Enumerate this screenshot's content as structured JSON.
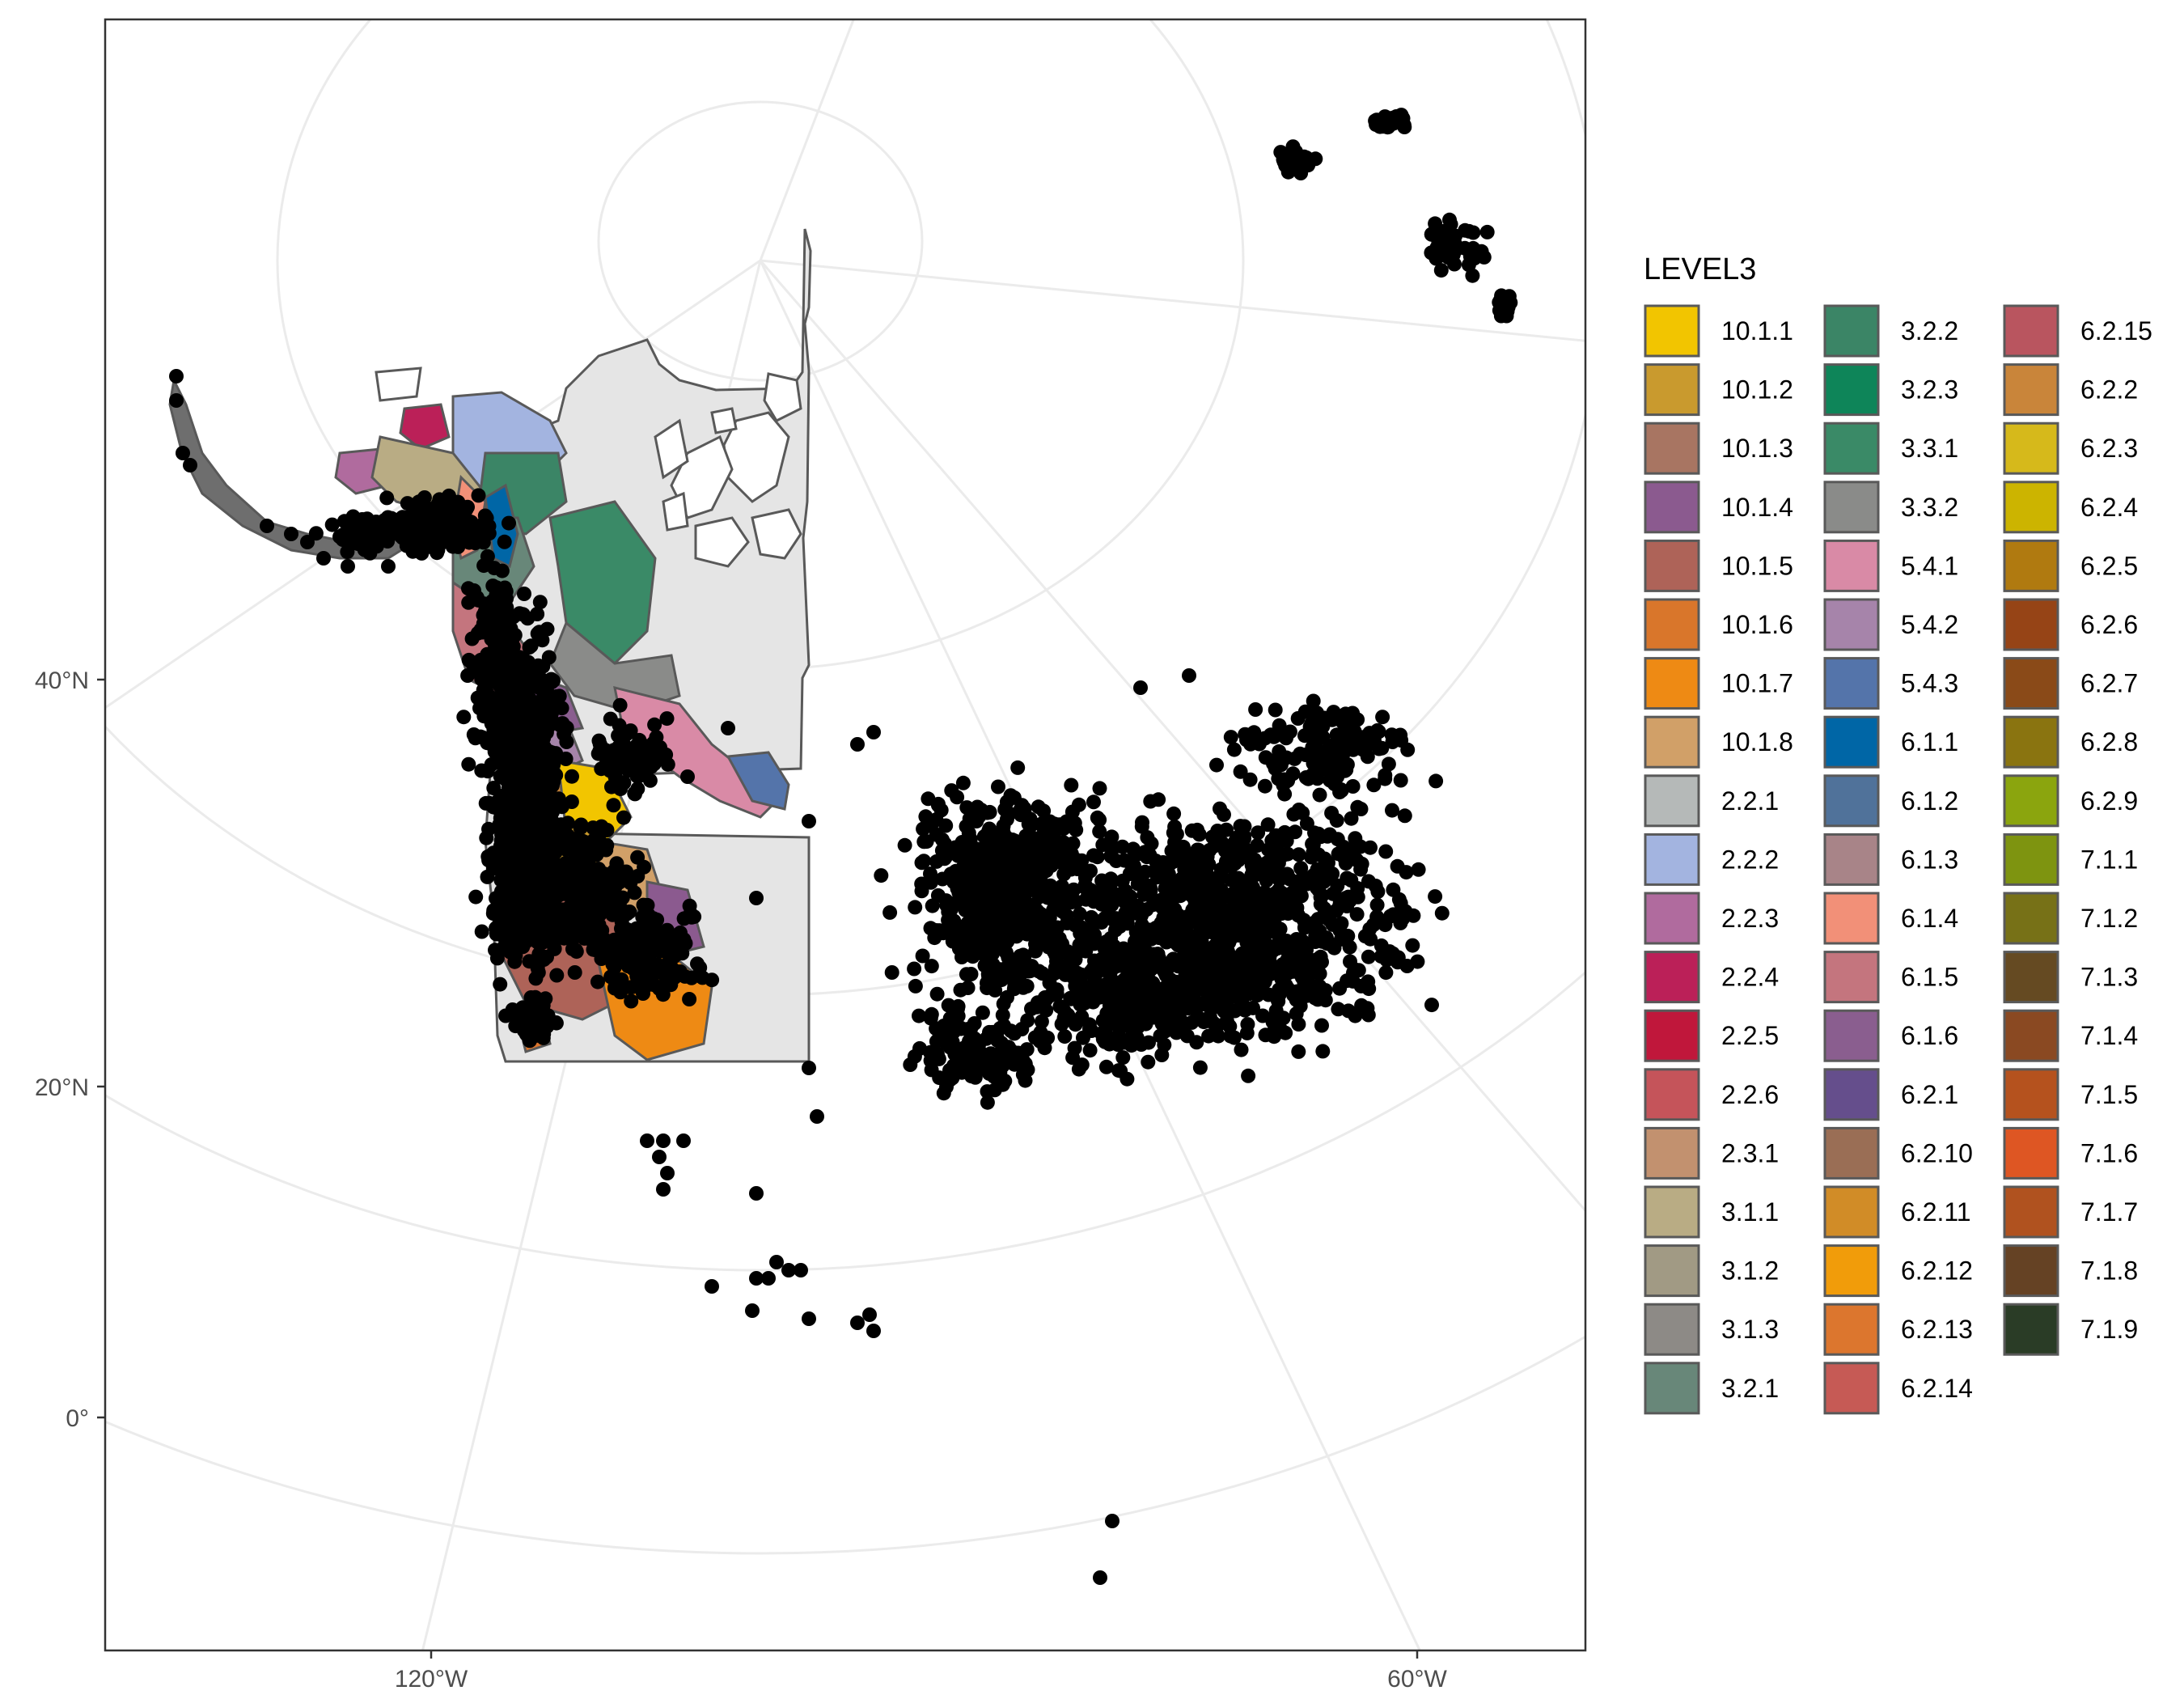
{
  "axes": {
    "y_ticks": [
      {
        "label": "40°N"
      },
      {
        "label": "20°N"
      },
      {
        "label": "0°"
      }
    ],
    "x_ticks": [
      {
        "label": "120°W"
      },
      {
        "label": "60°W"
      }
    ]
  },
  "legend": {
    "title": "LEVEL3",
    "placement": "right",
    "items": [
      {
        "label": "10.1.1",
        "color": "#F2C500"
      },
      {
        "label": "10.1.2",
        "color": "#C99A2E"
      },
      {
        "label": "10.1.3",
        "color": "#A87562"
      },
      {
        "label": "10.1.4",
        "color": "#8B5A8F"
      },
      {
        "label": "10.1.5",
        "color": "#AE6358"
      },
      {
        "label": "10.1.6",
        "color": "#D9762B"
      },
      {
        "label": "10.1.7",
        "color": "#EE8A14"
      },
      {
        "label": "10.1.8",
        "color": "#D1A068"
      },
      {
        "label": "2.2.1",
        "color": "#B5B9B8"
      },
      {
        "label": "2.2.2",
        "color": "#A3B4E0"
      },
      {
        "label": "2.2.3",
        "color": "#B06B9E"
      },
      {
        "label": "2.2.4",
        "color": "#BB2058"
      },
      {
        "label": "2.2.5",
        "color": "#C0173B"
      },
      {
        "label": "2.2.6",
        "color": "#C5545A"
      },
      {
        "label": "2.3.1",
        "color": "#C2916F"
      },
      {
        "label": "3.1.1",
        "color": "#B9AC84"
      },
      {
        "label": "3.1.2",
        "color": "#A19A84"
      },
      {
        "label": "3.1.3",
        "color": "#8D8A86"
      },
      {
        "label": "3.2.1",
        "color": "#688779"
      },
      {
        "label": "3.2.2",
        "color": "#3B8566"
      },
      {
        "label": "3.2.3",
        "color": "#0E8559"
      },
      {
        "label": "3.3.1",
        "color": "#3A8A67"
      },
      {
        "label": "3.3.2",
        "color": "#8A8B89"
      },
      {
        "label": "5.4.1",
        "color": "#D98AA6"
      },
      {
        "label": "5.4.2",
        "color": "#A684AA"
      },
      {
        "label": "5.4.3",
        "color": "#5474AA"
      },
      {
        "label": "6.1.1",
        "color": "#0066A6"
      },
      {
        "label": "6.1.2",
        "color": "#50729A"
      },
      {
        "label": "6.1.3",
        "color": "#A88488"
      },
      {
        "label": "6.1.4",
        "color": "#F29078"
      },
      {
        "label": "6.1.5",
        "color": "#C4757E"
      },
      {
        "label": "6.1.6",
        "color": "#8A5E8F"
      },
      {
        "label": "6.2.1",
        "color": "#654E8C"
      },
      {
        "label": "6.2.10",
        "color": "#9A6E55"
      },
      {
        "label": "6.2.11",
        "color": "#D18C27"
      },
      {
        "label": "6.2.12",
        "color": "#F19C0A"
      },
      {
        "label": "6.2.13",
        "color": "#DC762E"
      },
      {
        "label": "6.2.14",
        "color": "#C65A55"
      },
      {
        "label": "6.2.15",
        "color": "#B9555F"
      },
      {
        "label": "6.2.2",
        "color": "#C9853A"
      },
      {
        "label": "6.2.3",
        "color": "#D6B91B"
      },
      {
        "label": "6.2.4",
        "color": "#CCB400"
      },
      {
        "label": "6.2.5",
        "color": "#B07A10"
      },
      {
        "label": "6.2.6",
        "color": "#964416"
      },
      {
        "label": "6.2.7",
        "color": "#8A4A18"
      },
      {
        "label": "6.2.8",
        "color": "#8A7410"
      },
      {
        "label": "6.2.9",
        "color": "#8BA50E"
      },
      {
        "label": "7.1.1",
        "color": "#7E9410"
      },
      {
        "label": "7.1.2",
        "color": "#777117"
      },
      {
        "label": "7.1.3",
        "color": "#654A22"
      },
      {
        "label": "7.1.4",
        "color": "#8A4922"
      },
      {
        "label": "7.1.5",
        "color": "#B5521E"
      },
      {
        "label": "7.1.6",
        "color": "#DE5623"
      },
      {
        "label": "7.1.7",
        "color": "#B0521F"
      },
      {
        "label": "7.1.8",
        "color": "#654224"
      },
      {
        "label": "7.1.9",
        "color": "#2A3C26"
      }
    ]
  },
  "map": {
    "projection": "polar stereographic (Lambert-like) conic",
    "graticule": "on",
    "background": "#FFFFFF",
    "land_fill": "#E5E5E5",
    "outline_color": "#595959",
    "point_color": "#000000"
  }
}
